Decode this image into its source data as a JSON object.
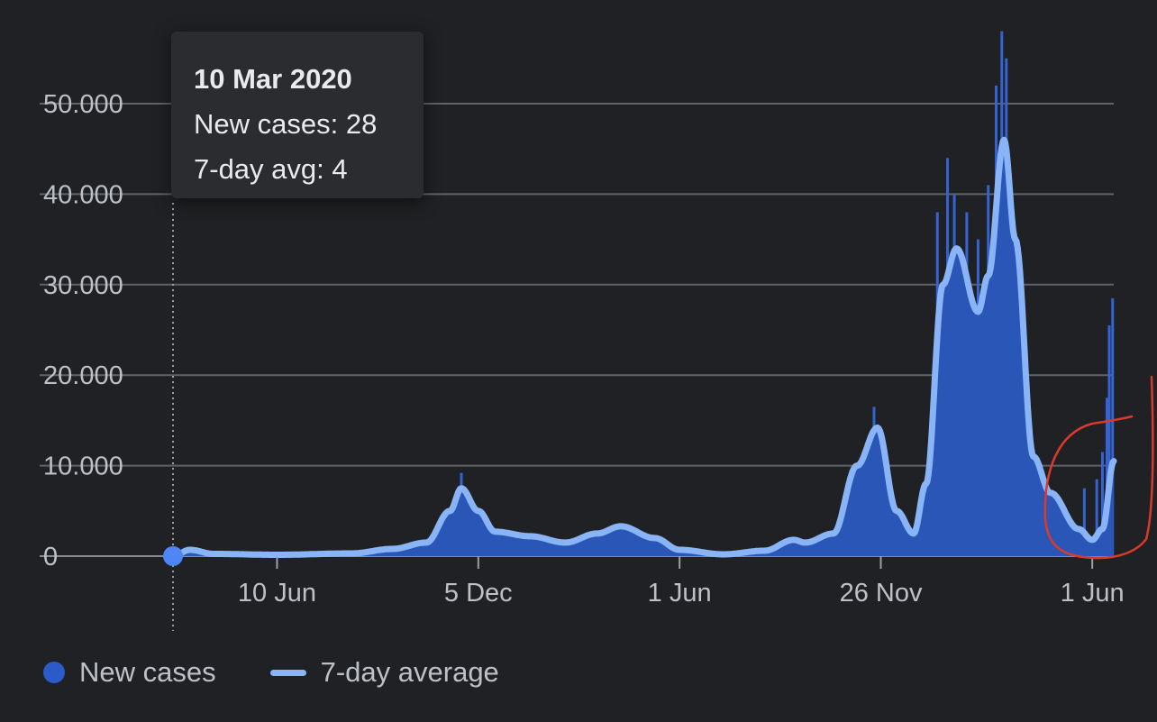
{
  "chart_data": {
    "type": "bar",
    "ylim": [
      0,
      55000
    ],
    "ytick_labels": [
      "0",
      "10.000",
      "20.000",
      "30.000",
      "40.000",
      "50.000"
    ],
    "ytick_values": [
      0,
      10000,
      20000,
      30000,
      40000,
      50000
    ],
    "x_start": "2020-03-10",
    "x_end": "2022-06-20",
    "xtick_labels": [
      {
        "date": "2020-06-10",
        "label": "10 Jun"
      },
      {
        "date": "2020-12-05",
        "label": "5 Dec"
      },
      {
        "date": "2021-06-01",
        "label": "1 Jun"
      },
      {
        "date": "2021-11-26",
        "label": "26 Nov"
      },
      {
        "date": "2022-06-01",
        "label": "1 Jun"
      }
    ],
    "grid": true,
    "legend_position": "bottom-left",
    "series": [
      {
        "name": "New cases",
        "kind": "bars",
        "color": "#2a5bc8"
      },
      {
        "name": "7-day average",
        "kind": "line",
        "color": "#8ab4f8"
      }
    ],
    "seven_day_average": [
      {
        "date": "2020-03-10",
        "value": 4
      },
      {
        "date": "2020-03-25",
        "value": 700
      },
      {
        "date": "2020-04-15",
        "value": 250
      },
      {
        "date": "2020-06-10",
        "value": 150
      },
      {
        "date": "2020-08-15",
        "value": 300
      },
      {
        "date": "2020-09-20",
        "value": 800
      },
      {
        "date": "2020-10-20",
        "value": 1500
      },
      {
        "date": "2020-11-10",
        "value": 5000
      },
      {
        "date": "2020-11-20",
        "value": 7500
      },
      {
        "date": "2020-12-05",
        "value": 5000
      },
      {
        "date": "2020-12-20",
        "value": 2700
      },
      {
        "date": "2021-01-20",
        "value": 2200
      },
      {
        "date": "2021-02-20",
        "value": 1500
      },
      {
        "date": "2021-03-20",
        "value": 2500
      },
      {
        "date": "2021-04-10",
        "value": 3300
      },
      {
        "date": "2021-05-10",
        "value": 2000
      },
      {
        "date": "2021-06-01",
        "value": 700
      },
      {
        "date": "2021-07-10",
        "value": 200
      },
      {
        "date": "2021-08-15",
        "value": 600
      },
      {
        "date": "2021-09-10",
        "value": 1800
      },
      {
        "date": "2021-09-20",
        "value": 1500
      },
      {
        "date": "2021-10-15",
        "value": 2500
      },
      {
        "date": "2021-11-05",
        "value": 10000
      },
      {
        "date": "2021-11-23",
        "value": 14200
      },
      {
        "date": "2021-12-10",
        "value": 5000
      },
      {
        "date": "2021-12-25",
        "value": 2500
      },
      {
        "date": "2022-01-05",
        "value": 8000
      },
      {
        "date": "2022-01-20",
        "value": 30000
      },
      {
        "date": "2022-02-01",
        "value": 34000
      },
      {
        "date": "2022-02-20",
        "value": 27000
      },
      {
        "date": "2022-03-01",
        "value": 31000
      },
      {
        "date": "2022-03-15",
        "value": 46000
      },
      {
        "date": "2022-03-25",
        "value": 35000
      },
      {
        "date": "2022-04-10",
        "value": 11000
      },
      {
        "date": "2022-04-25",
        "value": 7000
      },
      {
        "date": "2022-05-20",
        "value": 3000
      },
      {
        "date": "2022-06-01",
        "value": 1800
      },
      {
        "date": "2022-06-10",
        "value": 3000
      },
      {
        "date": "2022-06-20",
        "value": 10500
      }
    ],
    "daily_spikes": [
      {
        "date": "2020-11-20",
        "value": 9200
      },
      {
        "date": "2021-11-20",
        "value": 16500
      },
      {
        "date": "2022-01-15",
        "value": 38000
      },
      {
        "date": "2022-01-24",
        "value": 44000
      },
      {
        "date": "2022-01-30",
        "value": 40000
      },
      {
        "date": "2022-02-10",
        "value": 38000
      },
      {
        "date": "2022-02-20",
        "value": 35000
      },
      {
        "date": "2022-03-01",
        "value": 41000
      },
      {
        "date": "2022-03-08",
        "value": 52000
      },
      {
        "date": "2022-03-13",
        "value": 58000
      },
      {
        "date": "2022-03-17",
        "value": 55000
      },
      {
        "date": "2022-05-25",
        "value": 7500
      },
      {
        "date": "2022-06-05",
        "value": 8500
      },
      {
        "date": "2022-06-10",
        "value": 11500
      },
      {
        "date": "2022-06-14",
        "value": 17500
      },
      {
        "date": "2022-06-16",
        "value": 25500
      },
      {
        "date": "2022-06-19",
        "value": 28500
      }
    ],
    "highlight": {
      "date": "2020-03-10",
      "value": 4
    }
  },
  "tooltip": {
    "date": "10 Mar 2020",
    "new_cases": "New cases: 28",
    "avg": "7-day avg: 4"
  },
  "legend": {
    "new_cases_label": "New cases",
    "avg_label": "7-day average"
  }
}
